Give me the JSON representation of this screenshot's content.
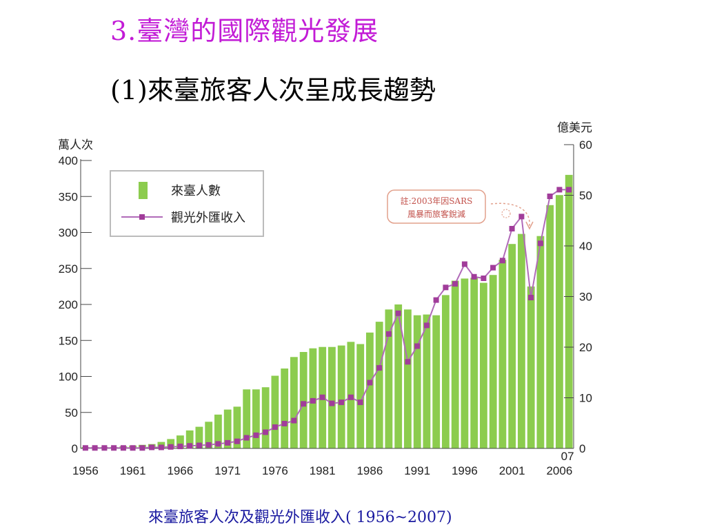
{
  "slide": {
    "title": "3.臺灣的國際觀光發展",
    "subtitle": "(1)來臺旅客人次呈成長趨勢",
    "caption": "來臺旅客人次及觀光外匯收入( 1956~2007)"
  },
  "chart_data": {
    "type": "bar",
    "left_unit": "萬人次",
    "right_unit": "億美元",
    "legend_position": "top-left",
    "ylim_left": [
      0,
      400
    ],
    "ylim_right": [
      0,
      60
    ],
    "left_ticks": [
      0,
      50,
      100,
      150,
      200,
      250,
      300,
      350,
      400
    ],
    "right_ticks": [
      0,
      10,
      20,
      30,
      40,
      50,
      60
    ],
    "x_tick_labels": [
      "1956",
      "1961",
      "1966",
      "1971",
      "1976",
      "1981",
      "1986",
      "1991",
      "1996",
      "2001",
      "2006"
    ],
    "x_extra_label": "07",
    "years": [
      1956,
      1957,
      1958,
      1959,
      1960,
      1961,
      1962,
      1963,
      1964,
      1965,
      1966,
      1967,
      1968,
      1969,
      1970,
      1971,
      1972,
      1973,
      1974,
      1975,
      1976,
      1977,
      1978,
      1979,
      1980,
      1981,
      1982,
      1983,
      1984,
      1985,
      1986,
      1987,
      1988,
      1989,
      1990,
      1991,
      1992,
      1993,
      1994,
      1995,
      1996,
      1997,
      1998,
      1999,
      2000,
      2001,
      2002,
      2003,
      2004,
      2005,
      2006,
      2007
    ],
    "series": [
      {
        "name": "來臺人數",
        "kind": "bar",
        "axis": "left",
        "color": "#8ccc4e",
        "values": [
          2,
          2,
          2,
          2,
          3,
          4,
          5,
          6,
          9,
          13,
          18,
          25,
          30,
          37,
          47,
          54,
          58,
          82,
          82,
          85,
          101,
          111,
          127,
          134,
          139,
          141,
          141,
          143,
          148,
          145,
          161,
          176,
          193,
          200,
          193,
          185,
          186,
          185,
          213,
          233,
          236,
          237,
          230,
          241,
          262,
          284,
          298,
          225,
          295,
          338,
          352,
          380
        ]
      },
      {
        "name": "觀光外匯收入",
        "kind": "line",
        "axis": "right",
        "color": "#a13c9a",
        "values": [
          0.1,
          0.1,
          0.1,
          0.1,
          0.1,
          0.1,
          0.1,
          0.2,
          0.2,
          0.3,
          0.4,
          0.5,
          0.6,
          0.7,
          0.9,
          1.1,
          1.4,
          2.1,
          2.6,
          3.2,
          4.2,
          4.9,
          5.5,
          8.8,
          9.4,
          10.1,
          8.9,
          9.1,
          10.1,
          9.1,
          13.0,
          15.9,
          22.6,
          26.7,
          17.1,
          20.2,
          24.3,
          29.3,
          31.8,
          32.5,
          36.4,
          33.9,
          33.6,
          35.7,
          37.1,
          43.4,
          45.8,
          29.8,
          40.5,
          49.8,
          51.1,
          51.1
        ]
      }
    ],
    "annotation": {
      "line1": "註:2003年因SARS",
      "line2": "風暴而旅客銳減"
    }
  }
}
